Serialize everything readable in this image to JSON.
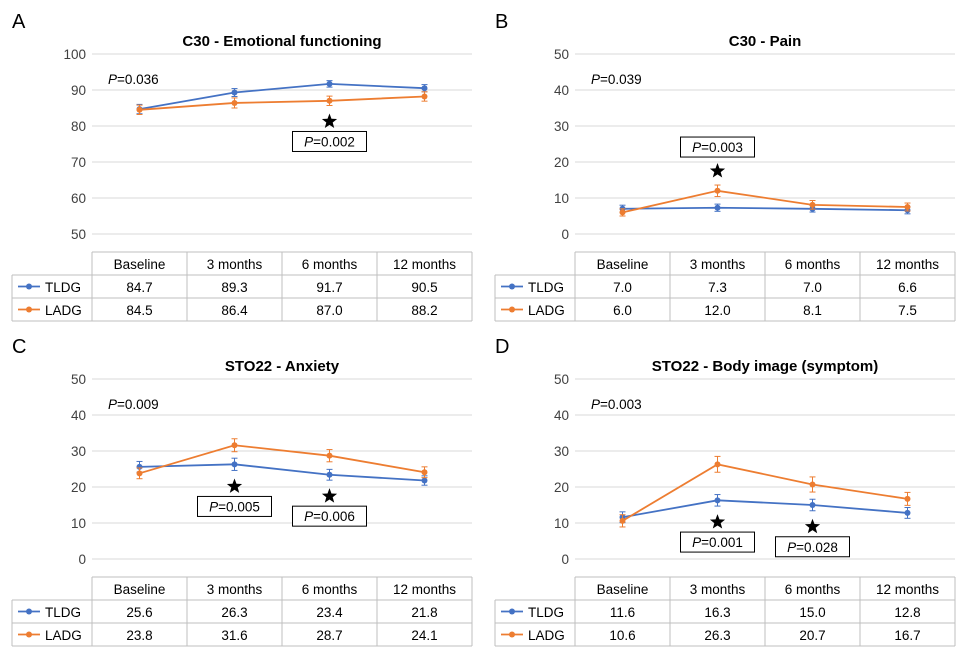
{
  "categories": [
    "Baseline",
    "3 months",
    "6 months",
    "12 months"
  ],
  "colors": {
    "TLDG": "#4472c4",
    "LADG": "#ed7d31"
  },
  "chart_data": [
    {
      "panel_label": "A",
      "type": "line",
      "title": "C30 - Emotional functioning",
      "categories": [
        "Baseline",
        "3 months",
        "6 months",
        "12 months"
      ],
      "ylim": [
        45,
        100
      ],
      "yticks": [
        50,
        60,
        70,
        80,
        90,
        100
      ],
      "overall_p": "P=0.036",
      "series": [
        {
          "name": "TLDG",
          "values": [
            84.7,
            89.3,
            91.7,
            90.5
          ],
          "display": [
            "84.7",
            "89.3",
            "91.7",
            "90.5"
          ],
          "err": [
            1.3,
            1.1,
            0.9,
            1.0
          ]
        },
        {
          "name": "LADG",
          "values": [
            84.5,
            86.4,
            87.0,
            88.2
          ],
          "display": [
            "84.5",
            "86.4",
            "87.0",
            "88.2"
          ],
          "err": [
            1.3,
            1.4,
            1.3,
            1.3
          ]
        }
      ],
      "annotations": [
        {
          "index": 2,
          "text": "P=0.002",
          "star_position": "below",
          "box_position": "below"
        }
      ],
      "grid": true
    },
    {
      "panel_label": "B",
      "type": "line",
      "title": "C30 - Pain",
      "categories": [
        "Baseline",
        "3 months",
        "6 months",
        "12 months"
      ],
      "ylim": [
        -5,
        50
      ],
      "yticks": [
        0,
        10,
        20,
        30,
        40,
        50
      ],
      "overall_p": "P=0.039",
      "series": [
        {
          "name": "TLDG",
          "values": [
            7.0,
            7.3,
            7.0,
            6.6
          ],
          "display": [
            "7.0",
            "7.3",
            "7.0",
            "6.6"
          ],
          "err": [
            1.0,
            1.0,
            0.9,
            1.0
          ]
        },
        {
          "name": "LADG",
          "values": [
            6.0,
            12.0,
            8.1,
            7.5
          ],
          "display": [
            "6.0",
            "12.0",
            "8.1",
            "7.5"
          ],
          "err": [
            1.0,
            1.6,
            1.2,
            1.1
          ]
        }
      ],
      "annotations": [
        {
          "index": 1,
          "text": "P=0.003",
          "star_position": "above",
          "box_position": "above"
        }
      ],
      "grid": true
    },
    {
      "panel_label": "C",
      "type": "line",
      "title": "STO22 - Anxiety",
      "categories": [
        "Baseline",
        "3 months",
        "6 months",
        "12 months"
      ],
      "ylim": [
        -5,
        50
      ],
      "yticks": [
        0,
        10,
        20,
        30,
        40,
        50
      ],
      "overall_p": "P=0.009",
      "series": [
        {
          "name": "TLDG",
          "values": [
            25.6,
            26.3,
            23.4,
            21.8
          ],
          "display": [
            "25.6",
            "26.3",
            "23.4",
            "21.8"
          ],
          "err": [
            1.5,
            1.7,
            1.5,
            1.3
          ]
        },
        {
          "name": "LADG",
          "values": [
            23.8,
            31.6,
            28.7,
            24.1
          ],
          "display": [
            "23.8",
            "31.6",
            "28.7",
            "24.1"
          ],
          "err": [
            1.5,
            1.8,
            1.7,
            1.5
          ]
        }
      ],
      "annotations": [
        {
          "index": 1,
          "text": "P=0.005",
          "star_position": "below",
          "box_position": "below"
        },
        {
          "index": 2,
          "text": "P=0.006",
          "star_position": "below",
          "box_position": "below"
        }
      ],
      "grid": true
    },
    {
      "panel_label": "D",
      "type": "line",
      "title": "STO22 - Body image (symptom)",
      "categories": [
        "Baseline",
        "3 months",
        "6 months",
        "12 months"
      ],
      "ylim": [
        -5,
        50
      ],
      "yticks": [
        0,
        10,
        20,
        30,
        40,
        50
      ],
      "overall_p": "P=0.003",
      "series": [
        {
          "name": "TLDG",
          "values": [
            11.6,
            16.3,
            15.0,
            12.8
          ],
          "display": [
            "11.6",
            "16.3",
            "15.0",
            "12.8"
          ],
          "err": [
            1.5,
            1.6,
            1.6,
            1.5
          ]
        },
        {
          "name": "LADG",
          "values": [
            10.6,
            26.3,
            20.7,
            16.7
          ],
          "display": [
            "10.6",
            "26.3",
            "20.7",
            "16.7"
          ],
          "err": [
            1.7,
            2.2,
            2.1,
            1.8
          ]
        }
      ],
      "annotations": [
        {
          "index": 1,
          "text": "P=0.001",
          "star_position": "below",
          "box_position": "below"
        },
        {
          "index": 2,
          "text": "P=0.028",
          "star_position": "below",
          "box_position": "below"
        }
      ],
      "grid": true
    }
  ]
}
